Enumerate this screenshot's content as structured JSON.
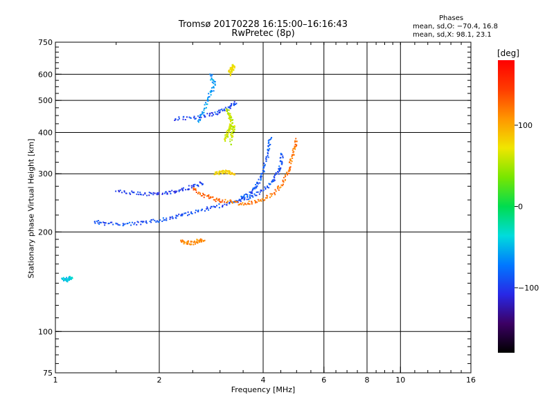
{
  "header": {
    "title_line1": "Tromsø 20170228 16:15:00–16:16:43",
    "title_line2": "RwPretec (8p)",
    "phases_title": "Phases",
    "phases_o": "mean, sd,O: −70.4, 16.8",
    "phases_x": "mean, sd,X:  98.1, 23.1"
  },
  "colorbar": {
    "unit": "[deg]",
    "ticks": [
      {
        "label": "100",
        "value": 100
      },
      {
        "label": "0",
        "value": 0
      },
      {
        "label": "−100",
        "value": -100
      }
    ],
    "range": [
      -180,
      180
    ],
    "colors": [
      "#000000",
      "#3c0064",
      "#2828e6",
      "#0078ff",
      "#00dcdc",
      "#00dc50",
      "#78e600",
      "#f0e600",
      "#ff9600",
      "#ff3c00",
      "#ff0000"
    ]
  },
  "chart_data": {
    "type": "scatter",
    "xlabel": "Frequency [MHz]",
    "ylabel": "Stationary phase Virtual Height [km]",
    "xscale": "log",
    "yscale": "log",
    "xlim": [
      1,
      16
    ],
    "ylim": [
      75,
      750
    ],
    "x_ticks": [
      {
        "v": 1,
        "label": "1"
      },
      {
        "v": 2,
        "label": "2"
      },
      {
        "v": 4,
        "label": "4"
      },
      {
        "v": 6,
        "label": "6"
      },
      {
        "v": 8,
        "label": "8"
      },
      {
        "v": 10,
        "label": "10"
      },
      {
        "v": 16,
        "label": "16"
      }
    ],
    "y_ticks": [
      {
        "v": 75,
        "label": "75"
      },
      {
        "v": 100,
        "label": "100"
      },
      {
        "v": 200,
        "label": "200"
      },
      {
        "v": 300,
        "label": "300"
      },
      {
        "v": 400,
        "label": "400"
      },
      {
        "v": 500,
        "label": "500"
      },
      {
        "v": 600,
        "label": "600"
      },
      {
        "v": 750,
        "label": "750"
      }
    ],
    "grid_x": [
      2,
      4,
      6,
      8,
      10
    ],
    "grid_y": [
      100,
      200,
      300,
      400,
      500,
      600
    ],
    "grid": true,
    "series": [
      {
        "traces": [
          {
            "phase": -90,
            "pts": [
              [
                1.3,
                215
              ],
              [
                1.4,
                212
              ],
              [
                1.6,
                211
              ],
              [
                1.8,
                213
              ],
              [
                2.0,
                217
              ],
              [
                2.2,
                221
              ],
              [
                2.4,
                227
              ],
              [
                2.7,
                234
              ],
              [
                3.0,
                240
              ],
              [
                3.3,
                246
              ],
              [
                3.6,
                253
              ],
              [
                3.9,
                262
              ],
              [
                4.2,
                280
              ],
              [
                4.4,
                300
              ],
              [
                4.5,
                320
              ],
              [
                4.55,
                345
              ]
            ]
          },
          {
            "phase": -100,
            "pts": [
              [
                1.5,
                265
              ],
              [
                1.7,
                262
              ],
              [
                1.9,
                260
              ],
              [
                2.1,
                262
              ],
              [
                2.3,
                268
              ],
              [
                2.5,
                274
              ],
              [
                2.7,
                282
              ]
            ]
          },
          {
            "phase": -95,
            "pts": [
              [
                2.2,
                440
              ],
              [
                2.5,
                443
              ],
              [
                2.8,
                452
              ],
              [
                3.0,
                462
              ],
              [
                3.2,
                478
              ],
              [
                3.35,
                495
              ]
            ]
          },
          {
            "phase": -85,
            "pts": [
              [
                3.4,
                250
              ],
              [
                3.6,
                258
              ],
              [
                3.8,
                272
              ],
              [
                3.95,
                292
              ],
              [
                4.05,
                320
              ],
              [
                4.15,
                355
              ],
              [
                4.2,
                385
              ]
            ]
          }
        ]
      },
      {
        "traces": [
          {
            "phase": 120,
            "pts": [
              [
                3.1,
                248
              ],
              [
                3.4,
                244
              ],
              [
                3.7,
                245
              ],
              [
                4.0,
                250
              ],
              [
                4.3,
                262
              ],
              [
                4.55,
                280
              ],
              [
                4.75,
                305
              ],
              [
                4.85,
                335
              ],
              [
                4.95,
                360
              ],
              [
                5.0,
                380
              ]
            ]
          },
          {
            "phase": 130,
            "pts": [
              [
                2.5,
                270
              ],
              [
                2.7,
                258
              ],
              [
                2.9,
                250
              ],
              [
                3.1,
                248
              ]
            ]
          },
          {
            "phase": 115,
            "pts": [
              [
                2.3,
                188
              ],
              [
                2.4,
                186
              ],
              [
                2.5,
                185
              ],
              [
                2.6,
                188
              ],
              [
                2.7,
                190
              ]
            ]
          }
        ]
      },
      {
        "traces": [
          {
            "phase": 60,
            "pts": [
              [
                3.1,
                380
              ],
              [
                3.15,
                395
              ],
              [
                3.2,
                410
              ],
              [
                3.25,
                430
              ],
              [
                3.2,
                450
              ],
              [
                3.15,
                470
              ],
              [
                3.25,
                390
              ],
              [
                3.3,
                420
              ],
              [
                3.2,
                360
              ]
            ]
          },
          {
            "phase": 75,
            "pts": [
              [
                3.2,
                610
              ],
              [
                3.25,
                625
              ],
              [
                3.3,
                640
              ],
              [
                3.2,
                595
              ]
            ]
          },
          {
            "phase": 80,
            "pts": [
              [
                2.9,
                300
              ],
              [
                3.0,
                302
              ],
              [
                3.1,
                305
              ],
              [
                3.2,
                303
              ],
              [
                3.3,
                300
              ]
            ]
          }
        ]
      },
      {
        "traces": [
          {
            "phase": -60,
            "pts": [
              [
                2.6,
                430
              ],
              [
                2.7,
                470
              ],
              [
                2.8,
                520
              ],
              [
                2.9,
                560
              ],
              [
                2.8,
                600
              ]
            ]
          },
          {
            "phase": -40,
            "pts": [
              [
                1.05,
                145
              ],
              [
                1.08,
                143
              ],
              [
                1.1,
                146
              ],
              [
                1.12,
                144
              ]
            ]
          }
        ]
      }
    ]
  }
}
